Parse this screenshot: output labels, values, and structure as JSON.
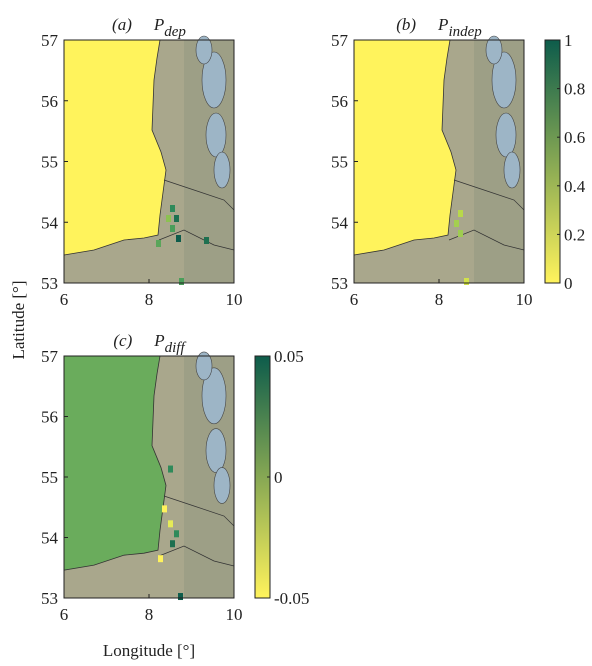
{
  "chart_data": [
    {
      "type": "map",
      "label": "(a)",
      "title": "P",
      "subscript": "dep",
      "xlim": [
        6,
        10
      ],
      "xticks": [
        6,
        8,
        10
      ],
      "ylim": [
        53,
        57
      ],
      "yticks": [
        53,
        54,
        55,
        56,
        57
      ]
    },
    {
      "type": "map",
      "label": "(b)",
      "title": "P",
      "subscript": "indep",
      "xlim": [
        6,
        10
      ],
      "xticks": [
        6,
        8,
        10
      ],
      "ylim": [
        53,
        57
      ],
      "yticks": [
        53,
        54,
        55,
        56,
        57
      ],
      "colorbar": {
        "lim": [
          0,
          1
        ],
        "ticks": [
          0,
          0.2,
          0.4,
          0.6,
          0.8,
          1
        ],
        "colors": [
          "#fff35c",
          "#0d5c4b"
        ]
      }
    },
    {
      "type": "map",
      "label": "(c)",
      "title": "P",
      "subscript": "diff",
      "xlim": [
        6,
        10
      ],
      "xticks": [
        6,
        8,
        10
      ],
      "ylim": [
        53,
        57
      ],
      "yticks": [
        53,
        54,
        55,
        56,
        57
      ],
      "xlabel": "Longitude [°]",
      "ylabel": "Latitude [°]",
      "colorbar": {
        "lim": [
          -0.05,
          0.05
        ],
        "ticks": [
          -0.05,
          0,
          0.05
        ],
        "colors": [
          "#fff35c",
          "#0d5c4b"
        ]
      }
    }
  ]
}
